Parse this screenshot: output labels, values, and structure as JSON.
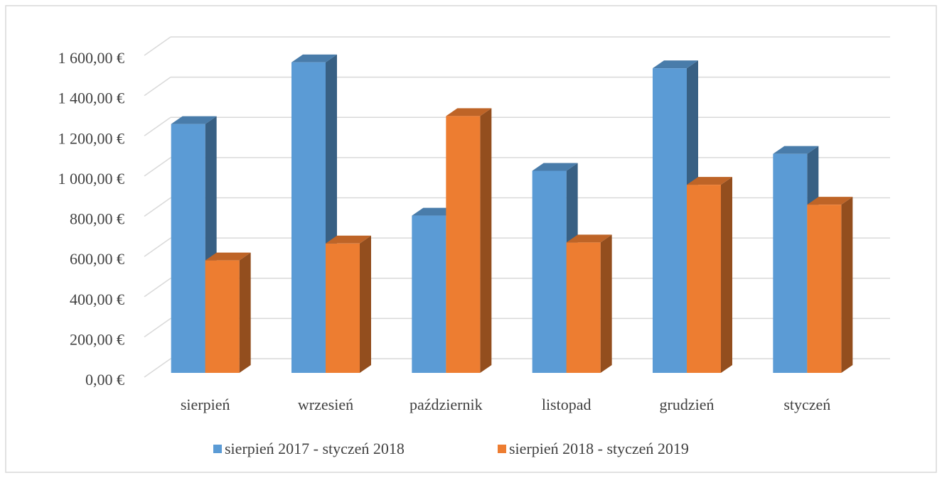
{
  "chart_data": {
    "type": "bar3d",
    "categories": [
      "sierpień",
      "wrzesień",
      "październik",
      "listopad",
      "grudzień",
      "styczeń"
    ],
    "series": [
      {
        "name": "sierpień 2017 - styczeń 2018",
        "color": "#5b9bd5",
        "values": [
          1250,
          1560,
          790,
          1015,
          1530,
          1100
        ]
      },
      {
        "name": "sierpień 2018 - styczeń 2019",
        "color": "#ed7d31",
        "values": [
          565,
          650,
          1290,
          655,
          945,
          845
        ]
      }
    ],
    "ylim": [
      0,
      1600
    ],
    "yticks": [
      {
        "value": 0,
        "label": "0,00 €"
      },
      {
        "value": 200,
        "label": "200,00 €"
      },
      {
        "value": 400,
        "label": "400,00 €"
      },
      {
        "value": 600,
        "label": "600,00 €"
      },
      {
        "value": 800,
        "label": "800,00 €"
      },
      {
        "value": 1000,
        "label": "1 000,00 €"
      },
      {
        "value": 1200,
        "label": "1 200,00 €"
      },
      {
        "value": 1400,
        "label": "1 400,00 €"
      },
      {
        "value": 1600,
        "label": "1 600,00 €"
      }
    ],
    "grid": true
  }
}
